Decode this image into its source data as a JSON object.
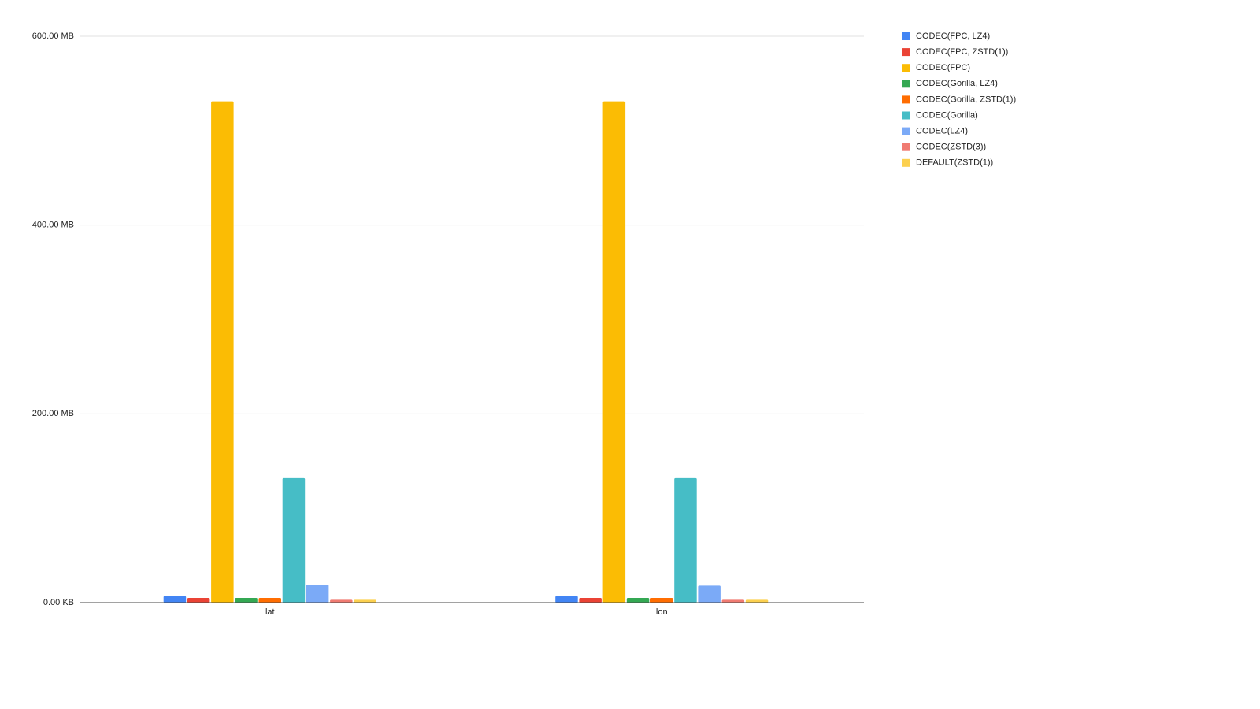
{
  "chart_data": {
    "type": "bar",
    "categories": [
      "lat",
      "lon"
    ],
    "series": [
      {
        "name": "CODEC(FPC, LZ4)",
        "color": "#4285f4",
        "values": [
          7,
          7
        ]
      },
      {
        "name": "CODEC(FPC, ZSTD(1))",
        "color": "#ea4335",
        "values": [
          5,
          5
        ]
      },
      {
        "name": "CODEC(FPC)",
        "color": "#fbbc04",
        "values": [
          531,
          531
        ]
      },
      {
        "name": "CODEC(Gorilla, LZ4)",
        "color": "#34a853",
        "values": [
          5,
          5
        ]
      },
      {
        "name": "CODEC(Gorilla, ZSTD(1))",
        "color": "#ff6d01",
        "values": [
          5,
          5
        ]
      },
      {
        "name": "CODEC(Gorilla)",
        "color": "#46bdc6",
        "values": [
          132,
          132
        ]
      },
      {
        "name": "CODEC(LZ4)",
        "color": "#7baaf7",
        "values": [
          19,
          18
        ]
      },
      {
        "name": "CODEC(ZSTD(3))",
        "color": "#f07b72",
        "values": [
          3,
          3
        ]
      },
      {
        "name": "DEFAULT(ZSTD(1))",
        "color": "#fcd04f",
        "values": [
          3,
          3
        ]
      }
    ],
    "ylim": [
      0,
      600
    ],
    "yticks": [
      {
        "value": 0,
        "label": "0.00 KB"
      },
      {
        "value": 200,
        "label": "200.00 MB"
      },
      {
        "value": 400,
        "label": "400.00 MB"
      },
      {
        "value": 600,
        "label": "600.00 MB"
      }
    ],
    "grid": true,
    "legend": "right"
  }
}
